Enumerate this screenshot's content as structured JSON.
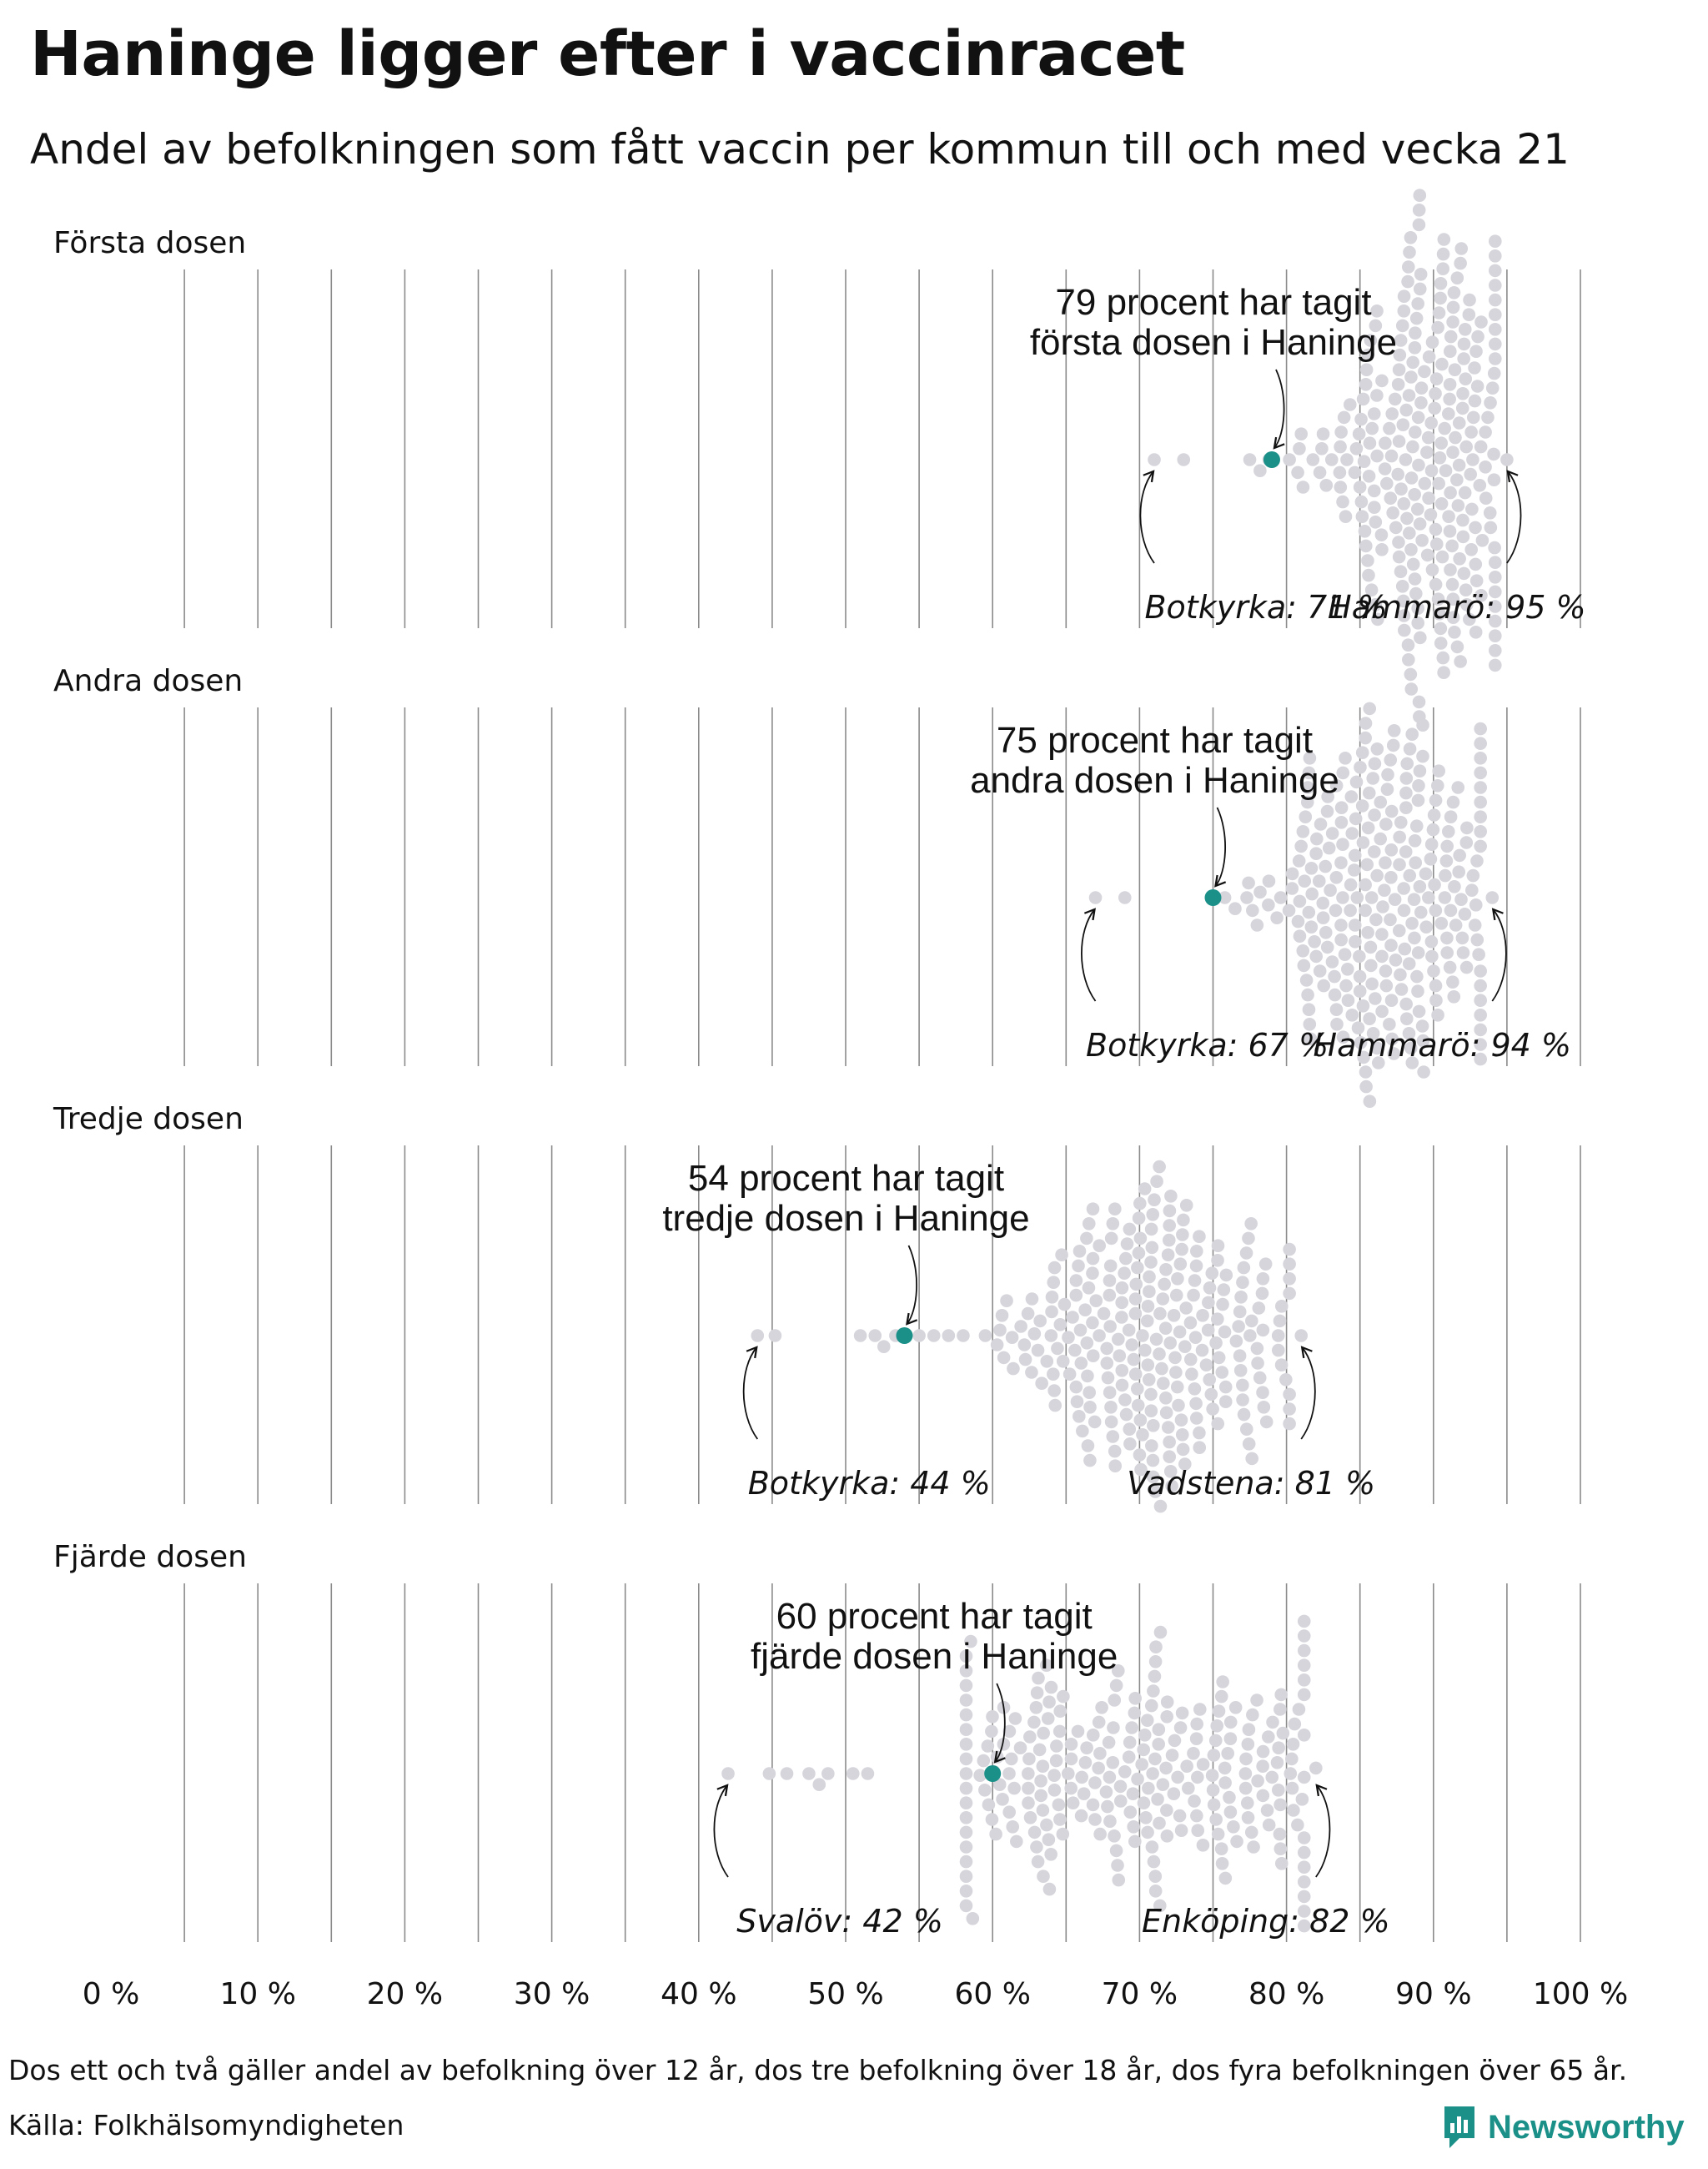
{
  "title": "Haninge ligger efter i vaccinracet",
  "subtitle": "Andel av befolkningen som fått vaccin per kommun till och med vecka 21",
  "footnote": "Dos ett och två gäller andel av befolkning över 12 år, dos tre befolkning över 18 år, dos fyra befolkningen över 65 år.",
  "source": "Källa: Folkhälsomyndigheten",
  "brand": "Newsworthy",
  "colors": {
    "highlight": "#1a9088",
    "dot": "#d6d5dc",
    "gridline": "#8a8a8a",
    "text": "#111111"
  },
  "chart_data": {
    "type": "scatter",
    "subtype": "beeswarm",
    "xlim": [
      0,
      100
    ],
    "x_ticks": [
      0,
      10,
      20,
      30,
      40,
      50,
      60,
      70,
      80,
      90,
      100
    ],
    "x_tick_labels": [
      "0 %",
      "10 %",
      "20 %",
      "30 %",
      "40 %",
      "50 %",
      "60 %",
      "70 %",
      "80 %",
      "90 %",
      "100 %"
    ],
    "gridlines_every": 5,
    "panels": [
      {
        "label": "Första dosen",
        "min": 71,
        "max": 95,
        "center": 89.5,
        "spread": 3.3,
        "highlight": 79,
        "annotation_line1": "79 procent har tagit",
        "annotation_line2": "första dosen i Haninge",
        "min_label": "Botkyrka: 71 %",
        "max_label": "Hammarö: 95 %",
        "extra_points": [
          71,
          73,
          77.5,
          78.2,
          78.8,
          80.2,
          81,
          81.8
        ]
      },
      {
        "label": "Andra dosen",
        "min": 67,
        "max": 94,
        "center": 87,
        "spread": 3.8,
        "highlight": 75,
        "annotation_line1": "75 procent har tagit",
        "annotation_line2": "andra dosen i Haninge",
        "min_label": "Botkyrka: 67 %",
        "max_label": "Hammarö: 94 %",
        "extra_points": [
          67,
          69,
          75.8,
          76.5,
          77.3,
          78,
          78.8,
          79.6,
          80.4
        ]
      },
      {
        "label": "Tredje dosen",
        "min": 44,
        "max": 81,
        "center": 70.5,
        "spread": 5,
        "highlight": 54,
        "annotation_line1": "54 procent har tagit",
        "annotation_line2": "tredje dosen i Haninge",
        "min_label": "Botkyrka: 44 %",
        "max_label": "Vadstena: 81 %",
        "extra_points": [
          44,
          45.2,
          51,
          52,
          52.6,
          53.4,
          55,
          56,
          57,
          58,
          59.5,
          60.5
        ]
      },
      {
        "label": "Fjärde dosen",
        "min": 42,
        "max": 82,
        "center": 70,
        "spread": 7.5,
        "highlight": 60,
        "annotation_line1": "60 procent har tagit",
        "annotation_line2": "fjärde dosen i Haninge",
        "min_label": "Svalöv: 42 %",
        "max_label": "Enköping: 82 %",
        "extra_points": [
          42,
          44.8,
          46,
          47.5,
          48.2,
          48.8,
          50.5,
          51.5
        ]
      }
    ]
  }
}
